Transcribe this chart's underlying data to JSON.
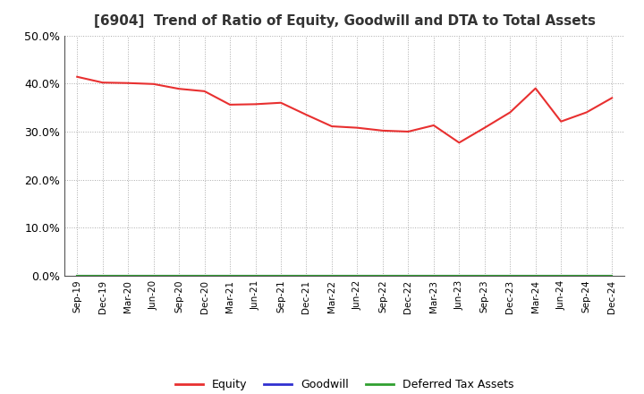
{
  "title": "[6904]  Trend of Ratio of Equity, Goodwill and DTA to Total Assets",
  "x_labels": [
    "Sep-19",
    "Dec-19",
    "Mar-20",
    "Jun-20",
    "Sep-20",
    "Dec-20",
    "Mar-21",
    "Jun-21",
    "Sep-21",
    "Dec-21",
    "Mar-22",
    "Jun-22",
    "Sep-22",
    "Dec-22",
    "Mar-23",
    "Jun-23",
    "Sep-23",
    "Dec-23",
    "Mar-24",
    "Jun-24",
    "Sep-24",
    "Dec-24"
  ],
  "equity": [
    0.414,
    0.402,
    0.401,
    0.399,
    0.389,
    0.384,
    0.356,
    0.357,
    0.36,
    0.335,
    0.311,
    0.308,
    0.302,
    0.3,
    0.313,
    0.277,
    0.308,
    0.34,
    0.39,
    0.321,
    0.34,
    0.37
  ],
  "goodwill": [
    0.0,
    0.0,
    0.0,
    0.0,
    0.0,
    0.0,
    0.0,
    0.0,
    0.0,
    0.0,
    0.0,
    0.0,
    0.0,
    0.0,
    0.0,
    0.0,
    0.0,
    0.0,
    0.0,
    0.0,
    0.0,
    0.0
  ],
  "dta": [
    0.0,
    0.0,
    0.0,
    0.0,
    0.0,
    0.0,
    0.0,
    0.0,
    0.0,
    0.0,
    0.0,
    0.0,
    0.0,
    0.0,
    0.0,
    0.0,
    0.0,
    0.0,
    0.0,
    0.0,
    0.0,
    0.0
  ],
  "equity_color": "#e83030",
  "goodwill_color": "#3030d0",
  "dta_color": "#30a030",
  "ylim": [
    0.0,
    0.5
  ],
  "yticks": [
    0.0,
    0.1,
    0.2,
    0.3,
    0.4,
    0.5
  ],
  "background_color": "#ffffff",
  "grid_color": "#aaaaaa",
  "title_fontsize": 11,
  "title_color": "#333333",
  "legend_labels": [
    "Equity",
    "Goodwill",
    "Deferred Tax Assets"
  ]
}
